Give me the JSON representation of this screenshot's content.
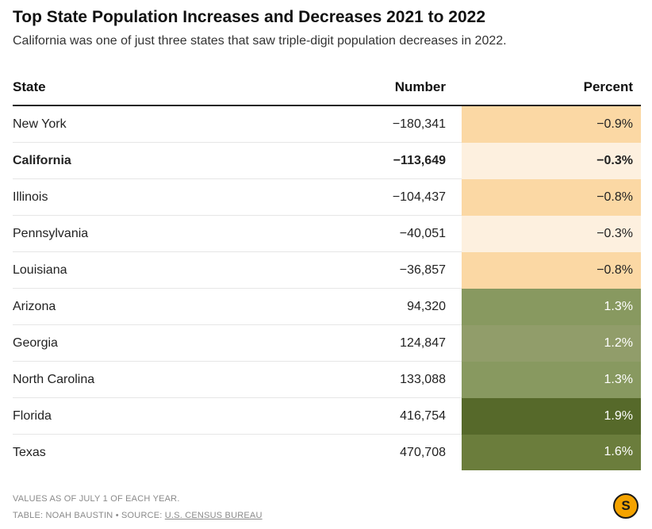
{
  "title": "Top State Population Increases and Decreases 2021 to 2022",
  "subtitle": "California was one of just three states that saw triple-digit population decreases in 2022.",
  "columns": {
    "state": "State",
    "number": "Number",
    "percent": "Percent"
  },
  "rows": [
    {
      "state": "New York",
      "number": "−180,341",
      "percent": "−0.9%",
      "bold": false
    },
    {
      "state": "California",
      "number": "−113,649",
      "percent": "−0.3%",
      "bold": true
    },
    {
      "state": "Illinois",
      "number": "−104,437",
      "percent": "−0.8%",
      "bold": false
    },
    {
      "state": "Pennsylvania",
      "number": "−40,051",
      "percent": "−0.3%",
      "bold": false
    },
    {
      "state": "Louisiana",
      "number": "−36,857",
      "percent": "−0.8%",
      "bold": false
    },
    {
      "state": "Arizona",
      "number": "94,320",
      "percent": "1.3%",
      "bold": false
    },
    {
      "state": "Georgia",
      "number": "124,847",
      "percent": "1.2%",
      "bold": false
    },
    {
      "state": "North Carolina",
      "number": "133,088",
      "percent": "1.3%",
      "bold": false
    },
    {
      "state": "Florida",
      "number": "416,754",
      "percent": "1.9%",
      "bold": false
    },
    {
      "state": "Texas",
      "number": "470,708",
      "percent": "1.6%",
      "bold": false
    }
  ],
  "chart_data": {
    "type": "table",
    "columns": [
      "State",
      "Number",
      "Percent"
    ],
    "rows": [
      [
        "New York",
        -180341,
        -0.9
      ],
      [
        "California",
        -113649,
        -0.3
      ],
      [
        "Illinois",
        -104437,
        -0.8
      ],
      [
        "Pennsylvania",
        -40051,
        -0.3
      ],
      [
        "Louisiana",
        -36857,
        -0.8
      ],
      [
        "Arizona",
        94320,
        1.3
      ],
      [
        "Georgia",
        124847,
        1.2
      ],
      [
        "North Carolina",
        133088,
        1.3
      ],
      [
        "Florida",
        416754,
        1.9
      ],
      [
        "Texas",
        470708,
        1.6
      ]
    ],
    "heatmap_column": "Percent",
    "colors": {
      "neg_strong": "#fbd8a4",
      "neg_light": "#fdf0df",
      "pos_light": "#919d6a",
      "pos_mid": "#889960",
      "pos_strong": "#56692a",
      "pos_high": "#6b7d3c"
    }
  },
  "footer": {
    "note": "VALUES AS OF JULY 1 OF EACH YEAR.",
    "credit": "TABLE: NOAH BAUSTIN • SOURCE: ",
    "source": "U.S. CENSUS BUREAU"
  },
  "logo": {
    "letter": "S",
    "color": "#f5a300"
  }
}
